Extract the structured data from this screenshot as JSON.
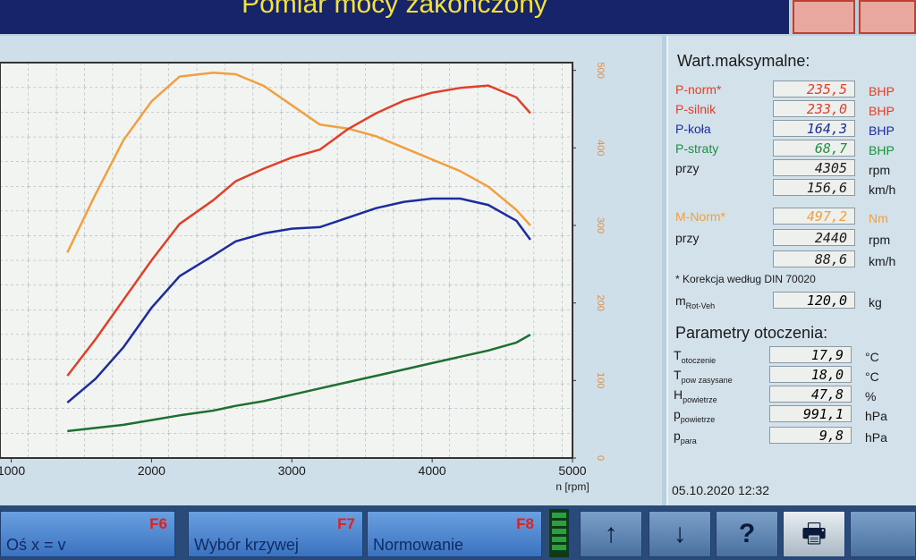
{
  "header": {
    "title": "Pomiar mocy zakończony"
  },
  "chart_data": {
    "type": "line",
    "x": [
      1400,
      1600,
      1800,
      2000,
      2200,
      2440,
      2600,
      2800,
      3000,
      3200,
      3400,
      3600,
      3800,
      4000,
      4200,
      4400,
      4600,
      4700
    ],
    "series": [
      {
        "color": "#f0a040",
        "axis": "y2",
        "values": [
          265,
          340,
          410,
          460,
          492,
          497,
          495,
          480,
          455,
          430,
          425,
          415,
          400,
          385,
          370,
          350,
          320,
          300
        ]
      },
      {
        "color": "#e0402a",
        "values": [
          52,
          75,
          100,
          125,
          148,
          163,
          175,
          183,
          190,
          195,
          208,
          218,
          226,
          231,
          234,
          235.5,
          228,
          218
        ]
      },
      {
        "color": "#1c2c9c",
        "values": [
          35,
          50,
          70,
          95,
          115,
          128,
          137,
          142,
          145,
          146,
          152,
          158,
          162,
          164,
          164,
          160,
          150,
          138
        ]
      },
      {
        "color": "#1f6e32",
        "values": [
          17,
          19,
          21,
          24,
          27,
          30,
          33,
          36,
          40,
          44,
          48,
          52,
          56,
          60,
          64,
          68,
          73,
          78
        ]
      }
    ],
    "x_label": "n [rpm]",
    "xlim": [
      920,
      5000
    ],
    "xticks": [
      1000,
      2000,
      3000,
      4000,
      5000
    ],
    "ylim": [
      0,
      250
    ],
    "y2lim": [
      0,
      510
    ],
    "y2ticks": [
      0,
      100,
      200,
      300,
      400,
      500
    ],
    "grid": true
  },
  "panel": {
    "max_title": "Wart.maksymalne:",
    "rows": [
      {
        "label": "P-norm*",
        "value": "235,5",
        "unit": "BHP",
        "color": "#e0402a"
      },
      {
        "label": "P-silnik",
        "value": "233,0",
        "unit": "BHP",
        "color": "#e0402a"
      },
      {
        "label": "P-koła",
        "value": "164,3",
        "unit": "BHP",
        "color": "#1c2c9c"
      },
      {
        "label": "P-straty",
        "value": "68,7",
        "unit": "BHP",
        "color": "#1f8e42"
      },
      {
        "label": "przy",
        "value": "4305",
        "unit": "rpm",
        "color": "#1a1a1a"
      },
      {
        "value": "156,6",
        "unit": "km/h",
        "color": "#1a1a1a"
      },
      {
        "label": "M-Norm*",
        "value": "497,2",
        "unit": "Nm",
        "color": "#f0a040"
      },
      {
        "label": "przy",
        "value": "2440",
        "unit": "rpm",
        "color": "#1a1a1a"
      },
      {
        "value": "88,6",
        "unit": "km/h",
        "color": "#1a1a1a"
      }
    ],
    "note": "* Korekcja według DIN 70020",
    "mass": {
      "label": "m",
      "sub": "Rot-Veh",
      "value": "120,0",
      "unit": "kg"
    },
    "env_title": "Parametry otoczenia:",
    "env": [
      {
        "label": "T",
        "sub": "otoczenie",
        "value": "17,9",
        "unit": "°C"
      },
      {
        "label": "T",
        "sub": "pow zasysane",
        "value": "18,0",
        "unit": "°C"
      },
      {
        "label": "H",
        "sub": "powietrze",
        "value": "47,8",
        "unit": "%"
      },
      {
        "label": "p",
        "sub": "powietrze",
        "value": "991,1",
        "unit": "hPa"
      },
      {
        "label": "p",
        "sub": "para",
        "value": "9,8",
        "unit": "hPa"
      }
    ],
    "datetime": "05.10.2020 12:32"
  },
  "footer": {
    "buttons": [
      {
        "label": "Oś x = v",
        "key": "F6"
      },
      {
        "label": "Wybór krzywej",
        "key": "F7"
      },
      {
        "label": "Normowanie",
        "key": "F8"
      }
    ]
  }
}
